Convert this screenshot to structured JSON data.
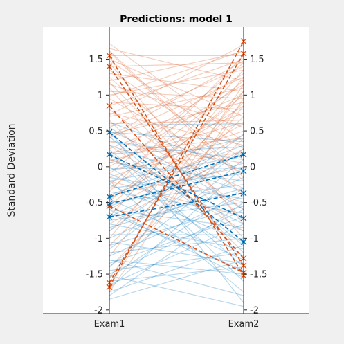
{
  "chart_data": {
    "type": "parallel-coordinates",
    "title": "Predictions: model 1",
    "xlabel": "",
    "ylabel": "Standard Deviation",
    "categories": [
      "Exam1",
      "Exam2"
    ],
    "ylim": [
      -2.05,
      1.95
    ],
    "yticks": [
      1.5,
      1,
      0.5,
      0,
      -0.5,
      -1,
      -1.5,
      -2
    ],
    "ytick_labels": [
      "1.5",
      "1",
      "0.5",
      "0",
      "-0.5",
      "-1",
      "-1.5",
      "-2"
    ],
    "grid": false,
    "legend": "none",
    "colors": {
      "class_red": "#d95319",
      "class_blue": "#0072bd",
      "axes_bg": "#ffffff",
      "figure_bg": "#f0f0f0"
    },
    "background_series": [
      {
        "class": "red",
        "lines": [
          [
            1.72,
            0.35
          ],
          [
            1.65,
            1.2
          ],
          [
            1.6,
            -0.2
          ],
          [
            1.55,
            1.55
          ],
          [
            1.5,
            0.7
          ],
          [
            1.45,
            -0.8
          ],
          [
            1.4,
            1.45
          ],
          [
            1.35,
            0.1
          ],
          [
            1.3,
            1.05
          ],
          [
            1.25,
            -0.4
          ],
          [
            1.2,
            1.6
          ],
          [
            1.15,
            0.55
          ],
          [
            1.1,
            -1.0
          ],
          [
            1.05,
            0.95
          ],
          [
            1.0,
            1.35
          ],
          [
            0.95,
            -0.1
          ],
          [
            0.9,
            0.8
          ],
          [
            0.85,
            1.5
          ],
          [
            0.8,
            -0.6
          ],
          [
            0.75,
            0.3
          ],
          [
            0.7,
            1.1
          ],
          [
            0.65,
            -1.2
          ],
          [
            0.6,
            0.65
          ],
          [
            0.55,
            1.4
          ],
          [
            0.5,
            -0.3
          ],
          [
            0.45,
            0.9
          ],
          [
            0.4,
            1.25
          ],
          [
            0.35,
            0.05
          ],
          [
            0.3,
            -0.9
          ],
          [
            0.25,
            1.0
          ],
          [
            0.2,
            0.4
          ],
          [
            0.15,
            1.3
          ],
          [
            0.1,
            -0.5
          ],
          [
            0.05,
            0.75
          ],
          [
            0.0,
            1.15
          ],
          [
            -0.05,
            0.2
          ],
          [
            -0.1,
            1.45
          ],
          [
            -0.15,
            0.5
          ],
          [
            -0.2,
            -0.7
          ],
          [
            -0.25,
            1.2
          ],
          [
            -0.3,
            0.85
          ],
          [
            -0.35,
            1.55
          ],
          [
            -0.4,
            0.0
          ],
          [
            -0.45,
            0.6
          ],
          [
            -0.55,
            1.05
          ],
          [
            -0.6,
            0.45
          ],
          [
            -0.7,
            1.35
          ],
          [
            -0.8,
            0.25
          ],
          [
            -0.9,
            0.9
          ],
          [
            -1.0,
            1.25
          ],
          [
            -1.1,
            0.7
          ],
          [
            -1.25,
            1.05
          ],
          [
            -1.4,
            0.4
          ],
          [
            -1.55,
            0.85
          ],
          [
            -1.65,
            1.15
          ],
          [
            -1.75,
            0.95
          ],
          [
            1.62,
            -0.15
          ],
          [
            1.48,
            0.25
          ],
          [
            1.18,
            -0.75
          ],
          [
            0.98,
            1.62
          ],
          [
            0.72,
            1.7
          ],
          [
            0.42,
            1.48
          ],
          [
            0.08,
            0.62
          ],
          [
            -0.48,
            1.0
          ]
        ]
      },
      {
        "class": "blue",
        "lines": [
          [
            0.62,
            -0.05
          ],
          [
            0.55,
            -0.6
          ],
          [
            0.48,
            0.35
          ],
          [
            0.42,
            -1.1
          ],
          [
            0.36,
            0.1
          ],
          [
            0.3,
            -0.35
          ],
          [
            0.24,
            -1.4
          ],
          [
            0.18,
            0.28
          ],
          [
            0.12,
            -0.8
          ],
          [
            0.06,
            -0.2
          ],
          [
            0.0,
            -1.25
          ],
          [
            -0.05,
            0.4
          ],
          [
            -0.1,
            -0.9
          ],
          [
            -0.15,
            -0.45
          ],
          [
            -0.2,
            0.15
          ],
          [
            -0.25,
            -1.05
          ],
          [
            -0.3,
            -0.1
          ],
          [
            -0.35,
            -0.65
          ],
          [
            -0.4,
            0.3
          ],
          [
            -0.45,
            -1.3
          ],
          [
            -0.5,
            -0.25
          ],
          [
            -0.55,
            0.05
          ],
          [
            -0.6,
            -0.85
          ],
          [
            -0.65,
            -1.45
          ],
          [
            -0.7,
            0.2
          ],
          [
            -0.75,
            -0.5
          ],
          [
            -0.8,
            -1.15
          ],
          [
            -0.85,
            -0.3
          ],
          [
            -0.9,
            0.45
          ],
          [
            -0.95,
            -0.95
          ],
          [
            -1.0,
            -0.15
          ],
          [
            -1.05,
            -1.35
          ],
          [
            -1.1,
            -0.55
          ],
          [
            -1.15,
            0.25
          ],
          [
            -1.2,
            -1.0
          ],
          [
            -1.25,
            -0.4
          ],
          [
            -1.3,
            -1.5
          ],
          [
            -1.35,
            -0.7
          ],
          [
            -1.4,
            0.1
          ],
          [
            -1.45,
            -1.2
          ],
          [
            -1.5,
            -0.6
          ],
          [
            -1.55,
            -0.3
          ],
          [
            -1.6,
            -1.4
          ],
          [
            -1.65,
            -0.8
          ],
          [
            -1.7,
            0.0
          ],
          [
            -1.75,
            -1.1
          ],
          [
            -1.8,
            -0.5
          ],
          [
            -1.85,
            -1.3
          ],
          [
            0.5,
            -1.9
          ],
          [
            0.2,
            -1.6
          ],
          [
            -0.2,
            -1.75
          ],
          [
            -0.6,
            -1.55
          ],
          [
            -1.3,
            -1.8
          ],
          [
            -1.52,
            -1.95
          ],
          [
            0.58,
            0.6
          ],
          [
            -0.02,
            -0.02
          ]
        ]
      }
    ],
    "highlighted_series": [
      {
        "class": "red",
        "lines": [
          [
            1.55,
            -1.52
          ],
          [
            1.4,
            -1.38
          ],
          [
            0.85,
            -1.28
          ],
          [
            -1.62,
            1.58
          ],
          [
            -1.68,
            1.75
          ],
          [
            -0.55,
            -1.48
          ]
        ]
      },
      {
        "class": "blue",
        "lines": [
          [
            0.48,
            -1.05
          ],
          [
            0.17,
            -0.72
          ],
          [
            -0.42,
            0.17
          ],
          [
            -0.52,
            -0.06
          ],
          [
            -0.7,
            -0.37
          ]
        ]
      }
    ]
  }
}
